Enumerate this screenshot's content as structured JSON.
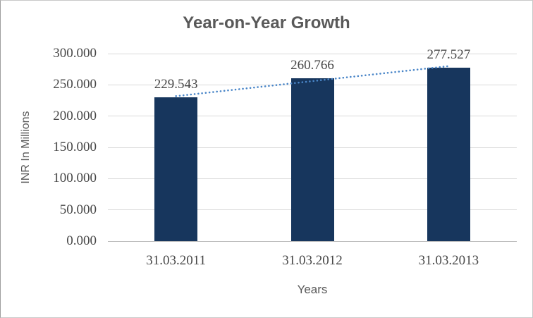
{
  "chart_data": {
    "type": "bar",
    "title": "Year-on-Year Growth",
    "xlabel": "Years",
    "ylabel": "INR In Millions",
    "categories": [
      "31.03.2011",
      "31.03.2012",
      "31.03.2013"
    ],
    "values": [
      229.543,
      260.766,
      277.527
    ],
    "data_labels": [
      "229.543",
      "260.766",
      "277.527"
    ],
    "ytick_labels": [
      "0.000",
      "50.000",
      "100.000",
      "150.000",
      "200.000",
      "250.000",
      "300.000"
    ],
    "ytick_step": 50,
    "ylim": [
      0,
      300
    ],
    "grid": "horizontal-only",
    "legend": "none",
    "trendline": {
      "type": "linear",
      "style": "dotted"
    },
    "colors": {
      "bar": "#17365d",
      "trendline": "#4a86c8",
      "title_text": "#595959",
      "number_text": "#474747",
      "axis_title_text": "#595959",
      "gridline": "#d9d9d9",
      "zero_line": "#bfbfbf",
      "background": "#ffffff",
      "border": "#c9c9c9"
    }
  }
}
